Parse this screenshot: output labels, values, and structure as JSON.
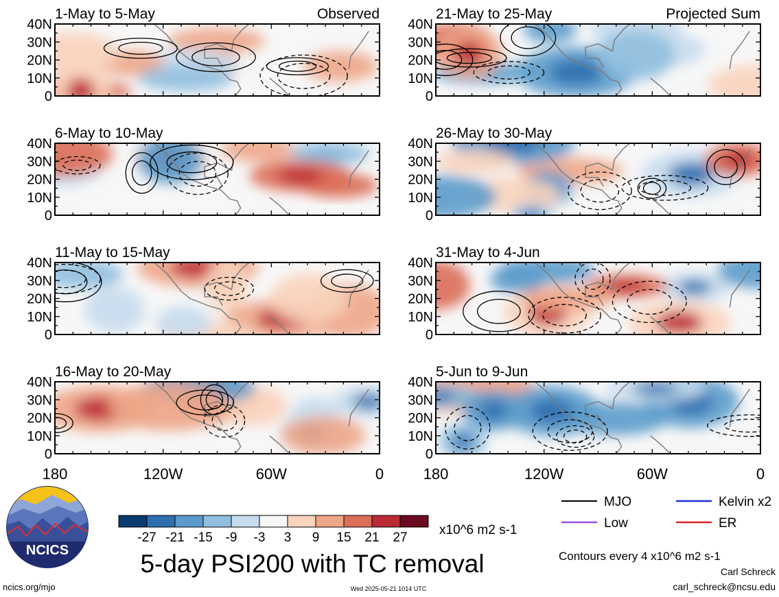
{
  "chart_data": {
    "type": "heatmap",
    "title": "5-day PSI200 with TC removal",
    "observed_label": "Observed",
    "projected_label": "Projected Sum",
    "lat_ticks": [
      "40N",
      "30N",
      "20N",
      "10N",
      "0"
    ],
    "lon_ticks": [
      "180",
      "120W",
      "60W",
      "0"
    ],
    "lon_range": [
      -180,
      0
    ],
    "lat_range": [
      0,
      40
    ],
    "panels": [
      {
        "period": "1-May to 5-May",
        "column": "observed"
      },
      {
        "period": "6-May to 10-May",
        "column": "observed"
      },
      {
        "period": "11-May to 15-May",
        "column": "observed"
      },
      {
        "period": "16-May to 20-May",
        "column": "observed"
      },
      {
        "period": "21-May to 25-May",
        "column": "projected"
      },
      {
        "period": "26-May to 30-May",
        "column": "projected"
      },
      {
        "period": "31-May to 4-Jun",
        "column": "projected"
      },
      {
        "period": "5-Jun to 9-Jun",
        "column": "projected"
      }
    ],
    "colorbar": {
      "levels": [
        "-27",
        "-21",
        "-15",
        "-9",
        "-3",
        "3",
        "9",
        "15",
        "21",
        "27"
      ],
      "colors": [
        "#0b3a6e",
        "#2e6fb0",
        "#5b9bcb",
        "#90bfdf",
        "#c6dcee",
        "#f7f7f7",
        "#f9d3bd",
        "#eea688",
        "#dc6d57",
        "#bb2b35",
        "#6b0a20"
      ],
      "units": "x10^6 m2 s-1"
    },
    "legend": [
      {
        "label": "MJO",
        "color": "#000000"
      },
      {
        "label": "Kelvin x2",
        "color": "#1f2fd8"
      },
      {
        "label": "Low",
        "color": "#9b4fd8"
      },
      {
        "label": "ER",
        "color": "#e02020"
      }
    ],
    "contour_note": "Contours every 4 x10^6 m2 s-1"
  },
  "footer": {
    "url": "ncics.org/mjo",
    "timestamp": "Wed 2025-05-21 1014 UTC",
    "author": "Carl Schreck",
    "email": "carl_schreck@ncsu.edu",
    "logo_text": "NCICS"
  }
}
